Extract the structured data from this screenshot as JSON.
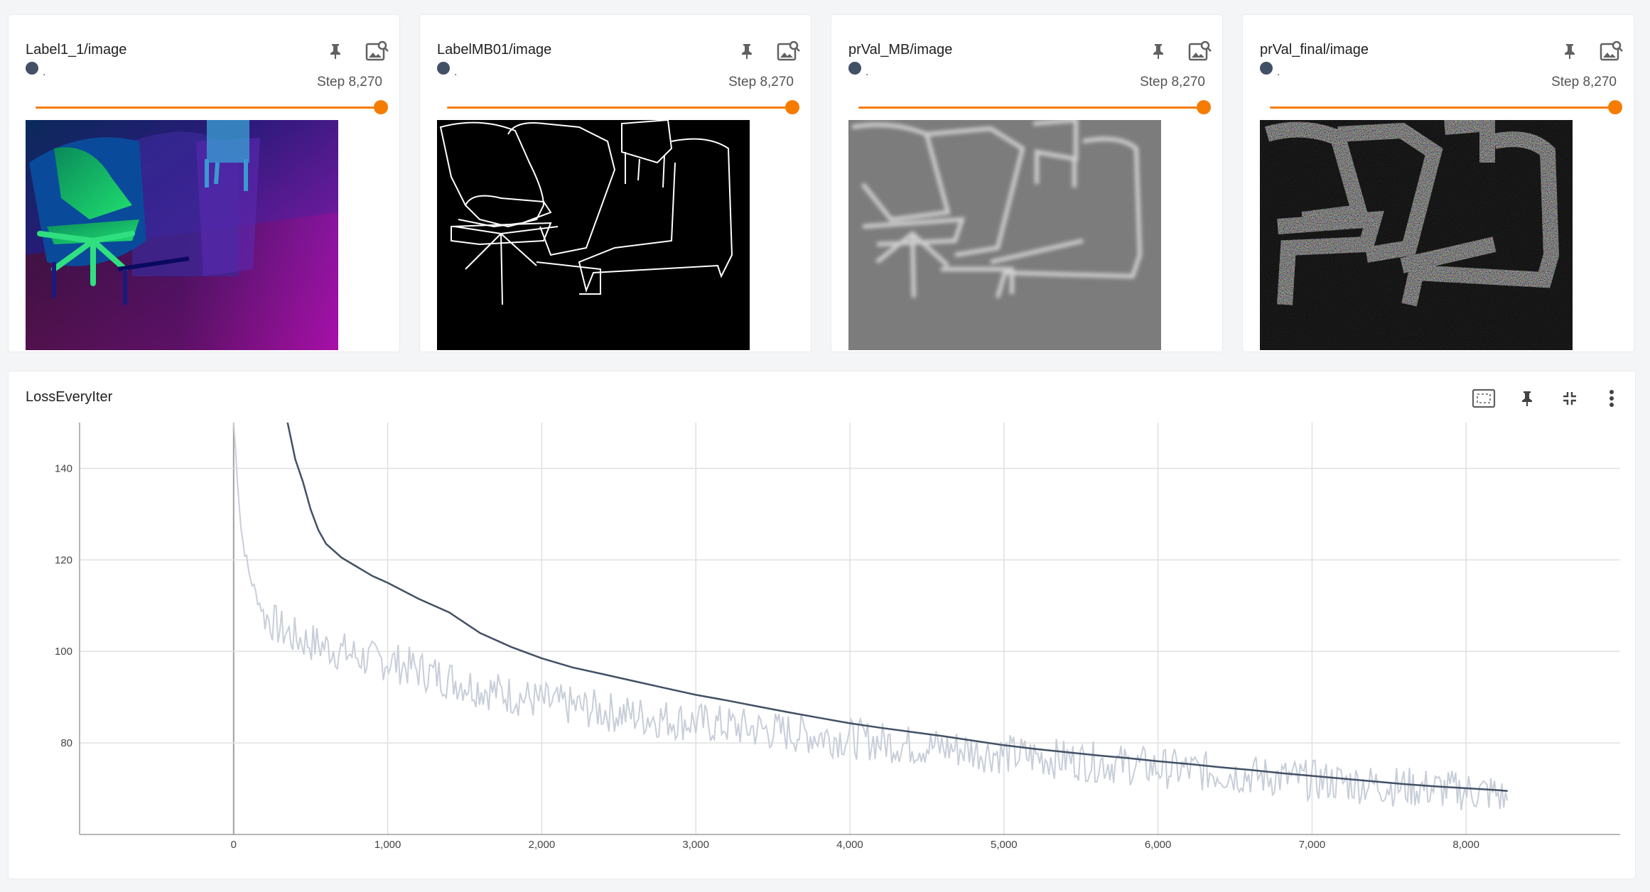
{
  "image_cards": [
    {
      "title": "Label1_1/image",
      "run_label": ".",
      "step": "Step 8,270",
      "slider_fraction": 1.0
    },
    {
      "title": "LabelMB01/image",
      "run_label": ".",
      "step": "Step 8,270",
      "slider_fraction": 1.0
    },
    {
      "title": "prVal_MB/image",
      "run_label": ".",
      "step": "Step 8,270",
      "slider_fraction": 1.0
    },
    {
      "title": "prVal_final/image",
      "run_label": ".",
      "step": "Step 8,270",
      "slider_fraction": 1.0
    }
  ],
  "icons": {
    "pin": "pin-icon",
    "image_zoom": "image-search-icon",
    "fit_domain": "fit-domain-icon",
    "collapse": "collapse-icon",
    "more": "more-vert-icon"
  },
  "colors": {
    "accent": "#f57c00",
    "run": "#425066",
    "raw_line": "#c8ced9",
    "smoothed_line": "#425066",
    "grid": "#e0e0e0"
  },
  "chart_data": {
    "type": "line",
    "title": "LossEveryIter",
    "xlabel": "",
    "ylabel": "",
    "xlim": [
      -1000,
      9000
    ],
    "ylim": [
      60,
      150
    ],
    "x_ticks": [
      0,
      1000,
      2000,
      3000,
      4000,
      5000,
      6000,
      7000,
      8000
    ],
    "x_tick_labels": [
      "0",
      "1,000",
      "2,000",
      "3,000",
      "4,000",
      "5,000",
      "6,000",
      "7,000",
      "8,000"
    ],
    "y_ticks": [
      80,
      100,
      120,
      140
    ],
    "y_tick_labels": [
      "80",
      "100",
      "120",
      "140"
    ],
    "grid": true,
    "series": [
      {
        "role": "raw",
        "x": [
          0,
          50,
          100,
          150,
          200,
          300,
          400,
          500,
          600,
          700,
          800,
          900,
          1000,
          1200,
          1400,
          1600,
          1800,
          2000,
          2200,
          2400,
          2600,
          2800,
          3000,
          3200,
          3400,
          3600,
          3800,
          4000,
          4200,
          4400,
          4600,
          4800,
          5000,
          5200,
          5400,
          5600,
          5800,
          6000,
          6200,
          6400,
          6600,
          6800,
          7000,
          7200,
          7400,
          7600,
          7800,
          8000,
          8200,
          8270
        ],
        "y": [
          150,
          126,
          117,
          112,
          108,
          105,
          103,
          102,
          101,
          100,
          99,
          98,
          98,
          96,
          94,
          92,
          90.5,
          89,
          88,
          87,
          86,
          85.3,
          84.5,
          83.8,
          83,
          82.3,
          81.6,
          81,
          80.3,
          79.5,
          79,
          78.3,
          77.6,
          77,
          76.4,
          75.8,
          75.2,
          74.6,
          74,
          73.5,
          73,
          72.4,
          71.9,
          71.4,
          70.9,
          70.4,
          70,
          69.5,
          69,
          67
        ]
      },
      {
        "role": "smoothed",
        "x": [
          350,
          400,
          450,
          500,
          550,
          600,
          700,
          800,
          900,
          1000,
          1200,
          1400,
          1600,
          1800,
          2000,
          2200,
          2400,
          2600,
          2800,
          3000,
          3200,
          3400,
          3600,
          3800,
          4000,
          4200,
          4400,
          4600,
          4800,
          5000,
          5200,
          5400,
          5600,
          5800,
          6000,
          6200,
          6400,
          6600,
          6800,
          7000,
          7200,
          7400,
          7600,
          7800,
          8000,
          8200,
          8270
        ],
        "y": [
          150,
          142,
          137,
          131,
          126.5,
          123.5,
          120.5,
          118.5,
          116.5,
          115,
          111.5,
          108.5,
          104,
          101,
          98.5,
          96.5,
          95,
          93.5,
          92,
          90.5,
          89.3,
          88,
          86.7,
          85.5,
          84.3,
          83.3,
          82.4,
          81.5,
          80.5,
          79.5,
          78.7,
          78,
          77.3,
          76.7,
          76,
          75.4,
          74.7,
          74.1,
          73.4,
          72.8,
          72.2,
          71.6,
          71,
          70.5,
          70.1,
          69.7,
          69.5
        ]
      }
    ]
  }
}
